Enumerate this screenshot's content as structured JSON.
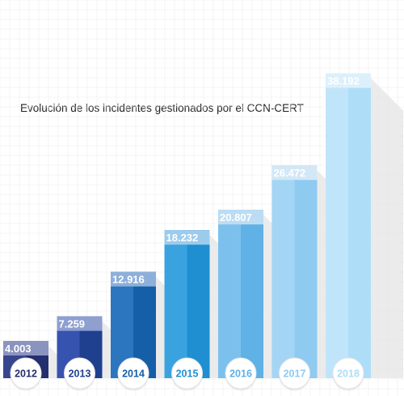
{
  "chart_data": {
    "type": "bar",
    "title": "Evolución de los incidentes gestionados por el CCN-CERT",
    "categories": [
      "2012",
      "2013",
      "2014",
      "2015",
      "2016",
      "2017",
      "2018"
    ],
    "value_labels": [
      "4.003",
      "7.259",
      "12.916",
      "18.232",
      "20.807",
      "26.472",
      "38.192"
    ],
    "values": [
      4003,
      7259,
      12916,
      18232,
      20807,
      26472,
      38192
    ],
    "ylim": [
      0,
      40000
    ],
    "grid": true,
    "legend": "none",
    "bar_colors": [
      {
        "dark": "#232f6e",
        "light": "#37458f",
        "label_bg": "#8b93bf"
      },
      {
        "dark": "#1f3f8f",
        "light": "#3653b0",
        "label_bg": "#8e9fd0"
      },
      {
        "dark": "#155fa8",
        "light": "#2b76bf",
        "label_bg": "#8db0d9"
      },
      {
        "dark": "#1f8fd2",
        "light": "#3aa3df",
        "label_bg": "#9ccbec"
      },
      {
        "dark": "#5fb1e6",
        "light": "#7cc1ee",
        "label_bg": "#bcdcf3"
      },
      {
        "dark": "#8fcaf1",
        "light": "#a4d5f5",
        "label_bg": "#d2e8f7"
      },
      {
        "dark": "#aeddf8",
        "light": "#c0e5fa",
        "label_bg": "#dcf0fb"
      }
    ],
    "year_text_colors": [
      "#232f6e",
      "#1f3f8f",
      "#155fa8",
      "#1f8fd2",
      "#5fb1e6",
      "#8fcaf1",
      "#aeddf8"
    ]
  }
}
